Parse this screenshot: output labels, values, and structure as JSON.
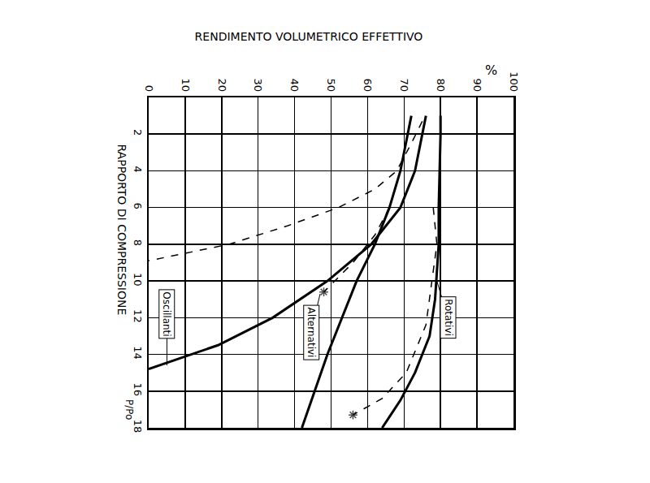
{
  "chart_data": {
    "type": "line",
    "title": "RENDIMENTO VOLUMETRICO EFFETTIVO",
    "xlabel": "%",
    "ylabel": "RAPPORTO DI COMPRESSIONE",
    "annotations": [
      "Oscillanti",
      "Alternativi",
      "Rotativi",
      "P/Po"
    ],
    "xlim": [
      0,
      100
    ],
    "xticks": [
      0,
      10,
      20,
      30,
      40,
      50,
      60,
      70,
      80,
      90,
      100
    ],
    "ylim": [
      0,
      18
    ],
    "yticks": [
      2,
      4,
      6,
      8,
      10,
      12,
      14,
      16,
      18
    ],
    "grid": true,
    "series": [
      {
        "name": "Oscillanti",
        "color": "#000000",
        "line_style": "solid",
        "marker": "none",
        "x": [
          76,
          75,
          73,
          69,
          61,
          49,
          34,
          19,
          0
        ],
        "values": [
          1,
          2,
          4,
          6,
          8,
          10,
          12,
          13.5,
          14.8
        ]
      },
      {
        "name": "Oscillanti",
        "color": "#000000",
        "line_style": "dashed",
        "marker": "none",
        "x": [
          75,
          72,
          68,
          62,
          52,
          38,
          22,
          10,
          0
        ],
        "values": [
          1.3,
          2.5,
          4,
          5,
          6,
          7,
          8,
          8.5,
          8.9
        ]
      },
      {
        "name": "Alternativi",
        "color": "#000000",
        "line_style": "solid",
        "marker": "none",
        "x": [
          72,
          71,
          69,
          66,
          62,
          57,
          53,
          49,
          45.5,
          42
        ],
        "values": [
          1,
          2,
          4,
          6,
          8,
          10,
          12,
          14,
          16,
          18
        ]
      },
      {
        "name": "Alternativi",
        "color": "#000000",
        "line_style": "dashed",
        "marker": "star_end",
        "x": [
          66,
          62,
          56,
          48
        ],
        "values": [
          6,
          7.5,
          9,
          10.6
        ]
      },
      {
        "name": "Rotativi",
        "color": "#000000",
        "line_style": "solid",
        "marker": "none",
        "x": [
          80,
          80,
          79.5,
          79.5,
          78.5,
          77,
          73,
          69,
          64
        ],
        "values": [
          1,
          2,
          6,
          8,
          11,
          13,
          15,
          16.5,
          18
        ]
      },
      {
        "name": "Rotativi",
        "color": "#000000",
        "line_style": "dashed",
        "marker": "star_end",
        "x": [
          78,
          79,
          76,
          70.6,
          64,
          56
        ],
        "values": [
          6,
          8,
          12.4,
          15,
          16.4,
          17.3
        ]
      }
    ]
  }
}
